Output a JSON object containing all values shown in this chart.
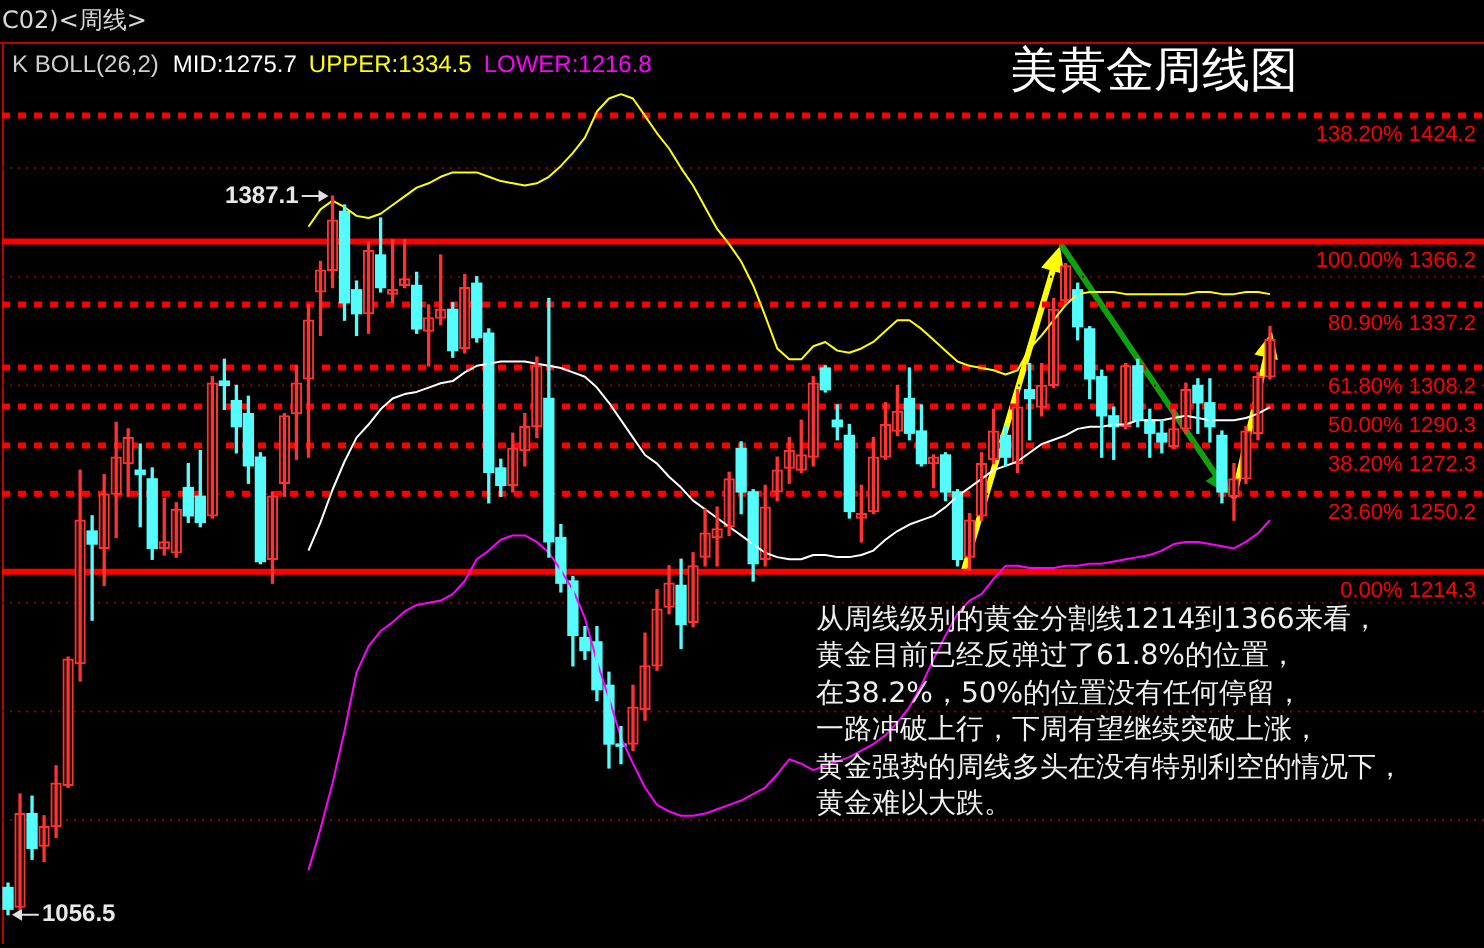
{
  "chart_data": {
    "type": "candlestick",
    "title": "美黄金周线图",
    "subtitle": "C02)<周线>",
    "legend_title": "K BOLL(26,2)",
    "categories": [
      null,
      null,
      null,
      null,
      null,
      null,
      null,
      null,
      null,
      null,
      null,
      null,
      null,
      null,
      null,
      null,
      null,
      null,
      null,
      null,
      null,
      null,
      null,
      null,
      null,
      null,
      null,
      null,
      null,
      null,
      null,
      null,
      null,
      null,
      null,
      null,
      null,
      null,
      null,
      null,
      null,
      null,
      null,
      null,
      null,
      null,
      null,
      null,
      null,
      null,
      null,
      null,
      null,
      null,
      null,
      null,
      null,
      null,
      null,
      null,
      null,
      null,
      null,
      null,
      null,
      null,
      null,
      null,
      null,
      null,
      null,
      null,
      null,
      null,
      null,
      null,
      null,
      null,
      null,
      null,
      null,
      null,
      null,
      null,
      null,
      null,
      null,
      null,
      null,
      null,
      null,
      null,
      null,
      null,
      null,
      null,
      null,
      null,
      null,
      null,
      null,
      null,
      null,
      null,
      null,
      null
    ],
    "ohlc": [
      [
        1069,
        1071,
        1056.5,
        1059
      ],
      [
        1060,
        1112,
        1059,
        1103
      ],
      [
        1103,
        1111,
        1082,
        1087
      ],
      [
        1088,
        1102,
        1081,
        1097
      ],
      [
        1097,
        1125,
        1092,
        1117
      ],
      [
        1116,
        1175,
        1115,
        1174
      ],
      [
        1172,
        1261,
        1164,
        1238
      ],
      [
        1233,
        1240,
        1192,
        1227
      ],
      [
        1225,
        1259,
        1208,
        1250
      ],
      [
        1250,
        1283,
        1230,
        1267
      ],
      [
        1264,
        1280,
        1249,
        1276
      ],
      [
        1261,
        1273,
        1235,
        1259
      ],
      [
        1257,
        1262,
        1220,
        1225
      ],
      [
        1225,
        1248,
        1222,
        1228
      ],
      [
        1223,
        1246,
        1221,
        1243
      ],
      [
        1253,
        1264,
        1237,
        1240
      ],
      [
        1249,
        1270,
        1235,
        1237
      ],
      [
        1240,
        1304,
        1239,
        1301
      ],
      [
        1302,
        1312,
        1289,
        1300
      ],
      [
        1293,
        1300,
        1269,
        1281
      ],
      [
        1287,
        1295,
        1255,
        1263
      ],
      [
        1267,
        1269,
        1218,
        1219
      ],
      [
        1220,
        1251,
        1209,
        1249
      ],
      [
        1255,
        1287,
        1249,
        1286
      ],
      [
        1287,
        1309,
        1266,
        1301
      ],
      [
        1303,
        1337,
        1267,
        1330
      ],
      [
        1343,
        1357,
        1323,
        1353
      ],
      [
        1353,
        1387.1,
        1345,
        1376
      ],
      [
        1380,
        1383,
        1330,
        1338
      ],
      [
        1344,
        1348,
        1323,
        1333
      ],
      [
        1333,
        1366,
        1324,
        1362
      ],
      [
        1360,
        1377,
        1343,
        1345
      ],
      [
        1342,
        1367,
        1338,
        1344
      ],
      [
        1346,
        1367,
        1345,
        1349
      ],
      [
        1346,
        1352,
        1324,
        1326
      ],
      [
        1325,
        1337,
        1309,
        1331
      ],
      [
        1331,
        1360,
        1328,
        1335
      ],
      [
        1335,
        1338,
        1313,
        1316
      ],
      [
        1317,
        1351,
        1315,
        1345
      ],
      [
        1347,
        1350,
        1320,
        1322
      ],
      [
        1324,
        1326,
        1246,
        1260
      ],
      [
        1262,
        1266,
        1249,
        1254
      ],
      [
        1254,
        1278,
        1251,
        1271
      ],
      [
        1270,
        1287,
        1263,
        1281
      ],
      [
        1281,
        1313,
        1276,
        1309
      ],
      [
        1294,
        1340,
        1221,
        1228
      ],
      [
        1230,
        1236,
        1205,
        1209
      ],
      [
        1210,
        1212,
        1171,
        1185
      ],
      [
        1184,
        1189,
        1174,
        1178
      ],
      [
        1182,
        1189,
        1155,
        1160
      ],
      [
        1162,
        1168,
        1124,
        1135
      ],
      [
        1135,
        1143,
        1126,
        1134
      ],
      [
        1135,
        1162,
        1132,
        1152
      ],
      [
        1151,
        1186,
        1146,
        1171
      ],
      [
        1171,
        1206,
        1169,
        1197
      ],
      [
        1198,
        1217,
        1195,
        1209
      ],
      [
        1208,
        1220,
        1179,
        1190
      ],
      [
        1191,
        1223,
        1189,
        1217
      ],
      [
        1221,
        1243,
        1217,
        1232
      ],
      [
        1230,
        1244,
        1217,
        1234
      ],
      [
        1235,
        1260,
        1231,
        1257
      ],
      [
        1271,
        1274,
        1241,
        1251
      ],
      [
        1251,
        1252,
        1210,
        1218
      ],
      [
        1220,
        1254,
        1217,
        1244
      ],
      [
        1251,
        1267,
        1247,
        1261
      ],
      [
        1262,
        1276,
        1255,
        1270
      ],
      [
        1261,
        1284,
        1260,
        1268
      ],
      [
        1267,
        1304,
        1263,
        1301
      ],
      [
        1308,
        1309,
        1297,
        1298
      ],
      [
        1284,
        1291,
        1275,
        1281
      ],
      [
        1277,
        1282,
        1239,
        1242
      ],
      [
        1239,
        1254,
        1228,
        1241
      ],
      [
        1242,
        1276,
        1241,
        1267
      ],
      [
        1267,
        1292,
        1266,
        1282
      ],
      [
        1279,
        1300,
        1277,
        1288
      ],
      [
        1294,
        1308,
        1275,
        1278
      ],
      [
        1279,
        1291,
        1263,
        1264
      ],
      [
        1264,
        1268,
        1253,
        1267
      ],
      [
        1268,
        1269,
        1247,
        1251
      ],
      [
        1251,
        1252,
        1217,
        1220
      ],
      [
        1221,
        1241,
        1215,
        1238
      ],
      [
        1240,
        1269,
        1238,
        1264
      ],
      [
        1266,
        1289,
        1264,
        1279
      ],
      [
        1277,
        1281,
        1263,
        1267
      ],
      [
        1264,
        1298,
        1260,
        1290
      ],
      [
        1298,
        1310,
        1275,
        1294
      ],
      [
        1290,
        1310,
        1286,
        1300
      ],
      [
        1300,
        1340,
        1299,
        1335
      ],
      [
        1339,
        1356,
        1338,
        1355
      ],
      [
        1344,
        1347,
        1321,
        1327
      ],
      [
        1326,
        1327,
        1294,
        1303
      ],
      [
        1304,
        1307,
        1267,
        1286
      ],
      [
        1286,
        1290,
        1266,
        1281
      ],
      [
        1281,
        1310,
        1280,
        1309
      ],
      [
        1309,
        1312,
        1281,
        1284
      ],
      [
        1284,
        1289,
        1267,
        1278
      ],
      [
        1278,
        1284,
        1269,
        1274
      ],
      [
        1272,
        1289,
        1271,
        1280
      ],
      [
        1280,
        1301,
        1278,
        1298
      ],
      [
        1300,
        1303,
        1278,
        1292
      ],
      [
        1292,
        1303,
        1274,
        1281
      ],
      [
        1277,
        1279,
        1246,
        1251
      ],
      [
        1249,
        1264,
        1238,
        1257
      ],
      [
        1257,
        1281,
        1255,
        1279
      ],
      [
        1278,
        1306,
        1275,
        1304
      ],
      [
        1304,
        1327,
        1303,
        1321
      ]
    ],
    "colors": [
      "#54fcfc",
      "#ff3232",
      "#54fcfc",
      "#ff3232",
      "#ff3232",
      "#ff3232",
      "#ff3232",
      "#54fcfc",
      "#ff3232",
      "#ff3232",
      "#ff3232",
      "#54fcfc",
      "#54fcfc",
      "#ff3232",
      "#ff3232",
      "#54fcfc",
      "#54fcfc",
      "#ff3232",
      "#54fcfc",
      "#54fcfc",
      "#54fcfc",
      "#54fcfc",
      "#ff3232",
      "#ff3232",
      "#ff3232",
      "#ff3232",
      "#ff3232",
      "#ff3232",
      "#54fcfc",
      "#54fcfc",
      "#ff3232",
      "#54fcfc",
      "#ff3232",
      "#ff3232",
      "#54fcfc",
      "#ff3232",
      "#ff3232",
      "#54fcfc",
      "#ff3232",
      "#54fcfc",
      "#54fcfc",
      "#54fcfc",
      "#ff3232",
      "#ff3232",
      "#ff3232",
      "#54fcfc",
      "#54fcfc",
      "#54fcfc",
      "#54fcfc",
      "#54fcfc",
      "#54fcfc",
      "#54fcfc",
      "#ff3232",
      "#ff3232",
      "#ff3232",
      "#ff3232",
      "#54fcfc",
      "#ff3232",
      "#ff3232",
      "#ff3232",
      "#ff3232",
      "#54fcfc",
      "#54fcfc",
      "#ff3232",
      "#ff3232",
      "#ff3232",
      "#ff3232",
      "#ff3232",
      "#54fcfc",
      "#54fcfc",
      "#54fcfc",
      "#ff3232",
      "#ff3232",
      "#ff3232",
      "#ff3232",
      "#54fcfc",
      "#54fcfc",
      "#ff3232",
      "#54fcfc",
      "#54fcfc",
      "#ff3232",
      "#ff3232",
      "#ff3232",
      "#54fcfc",
      "#ff3232",
      "#54fcfc",
      "#ff3232",
      "#ff3232",
      "#ff3232",
      "#54fcfc",
      "#54fcfc",
      "#54fcfc",
      "#54fcfc",
      "#ff3232",
      "#54fcfc",
      "#54fcfc",
      "#54fcfc",
      "#ff3232",
      "#ff3232",
      "#54fcfc",
      "#54fcfc",
      "#54fcfc",
      "#ff3232",
      "#ff3232",
      "#ff3232",
      "#ff3232"
    ],
    "series": [
      {
        "name": "MID:1275.7",
        "type": "line",
        "color": "#ffffff",
        "values": [
          null,
          null,
          null,
          null,
          null,
          null,
          null,
          null,
          null,
          null,
          null,
          null,
          null,
          null,
          null,
          null,
          null,
          null,
          null,
          null,
          null,
          null,
          null,
          null,
          null,
          1224,
          1237,
          1252,
          1265,
          1276,
          1282,
          1289,
          1294,
          1296,
          1297,
          1299,
          1301,
          1302,
          1306,
          1309,
          1310,
          1311,
          1311,
          1311,
          1310,
          1309,
          1308,
          1306,
          1304,
          1299,
          1292,
          1284,
          1276,
          1268,
          1264,
          1258,
          1253,
          1247,
          1243,
          1239,
          1235,
          1231,
          1227,
          1223,
          1221,
          1220,
          1220,
          1222,
          1222,
          1221,
          1221,
          1222,
          1224,
          1229,
          1233,
          1236,
          1238,
          1240,
          1244,
          1249,
          1253,
          1257,
          1261,
          1263,
          1265,
          1269,
          1273,
          1275,
          1277,
          1280,
          1281,
          1281,
          1282,
          1282,
          1284,
          1284,
          1284,
          1285,
          1286,
          1285,
          1284,
          1284,
          1284,
          1285,
          1287,
          1290
        ]
      },
      {
        "name": "UPPER:1334.5",
        "type": "line",
        "color": "#ffff00",
        "values": [
          null,
          null,
          null,
          null,
          null,
          null,
          null,
          null,
          null,
          null,
          null,
          null,
          null,
          null,
          null,
          null,
          null,
          null,
          null,
          null,
          null,
          null,
          null,
          null,
          null,
          1373,
          1381,
          1385,
          1382,
          1378,
          1377,
          1379,
          1383,
          1387,
          1391,
          1393,
          1396,
          1398,
          1398,
          1398,
          1396,
          1394,
          1393,
          1392,
          1393,
          1396,
          1401,
          1407,
          1414,
          1426,
          1432,
          1434,
          1432,
          1424,
          1416,
          1409,
          1400,
          1392,
          1382,
          1372,
          1365,
          1357,
          1346,
          1332,
          1317,
          1312,
          1312,
          1318,
          1320,
          1316,
          1315,
          1317,
          1320,
          1325,
          1330,
          1330,
          1326,
          1321,
          1316,
          1311,
          1309,
          1308,
          1307,
          1305,
          1307,
          1317,
          1323,
          1330,
          1337,
          1342,
          1343,
          1343,
          1343,
          1342,
          1342,
          1342,
          1342,
          1342,
          1342,
          1343,
          1343,
          1342,
          1342,
          1343,
          1343,
          1342
        ]
      },
      {
        "name": "LOWER:1216.8",
        "type": "line",
        "color": "#ff00ff",
        "values": [
          null,
          null,
          null,
          null,
          null,
          null,
          null,
          null,
          null,
          null,
          null,
          null,
          null,
          null,
          null,
          null,
          null,
          null,
          null,
          null,
          null,
          null,
          null,
          null,
          null,
          1077,
          1096,
          1117,
          1141,
          1168,
          1180,
          1187,
          1191,
          1196,
          1199,
          1200,
          1201,
          1204,
          1210,
          1220,
          1224,
          1229,
          1231,
          1231,
          1228,
          1223,
          1215,
          1206,
          1193,
          1173,
          1156,
          1138,
          1126,
          1115,
          1107,
          1104,
          1102,
          1102,
          1103,
          1105,
          1107,
          1109,
          1112,
          1115,
          1121,
          1128,
          1126,
          1123,
          1125,
          1127,
          1129,
          1132,
          1135,
          1139,
          1145,
          1152,
          1162,
          1174,
          1185,
          1195,
          1201,
          1204,
          1211,
          1217,
          1217,
          1216,
          1216,
          1216,
          1217,
          1217,
          1218,
          1218,
          1219,
          1220,
          1221,
          1222,
          1224,
          1227,
          1228,
          1228,
          1227,
          1226,
          1225,
          1228,
          1232,
          1238
        ]
      }
    ],
    "ylim": [
      1043,
      1458
    ],
    "yticks": [
      {
        "value": 1100,
        "label": null
      },
      {
        "value": 1150,
        "label": null
      },
      {
        "value": 1200,
        "label": null
      },
      {
        "value": 1250,
        "label": null
      },
      {
        "value": 1300,
        "label": null
      },
      {
        "value": 1350,
        "label": null
      },
      {
        "value": 1400,
        "label": null
      }
    ],
    "grid": "y",
    "tick_labels": false,
    "ref_lines": [
      {
        "axis": "y",
        "value": 1424.2,
        "label": "138.20% 1424.2",
        "color": "#ff0000",
        "line_style": "dotted"
      },
      {
        "axis": "y",
        "value": 1366.2,
        "label": "100.00% 1366.2",
        "color": "#ff0000",
        "line_style": "solid"
      },
      {
        "axis": "y",
        "value": 1337.2,
        "label": "80.90% 1337.2",
        "color": "#ff0000",
        "line_style": "dotted"
      },
      {
        "axis": "y",
        "value": 1308.2,
        "label": "61.80% 1308.2",
        "color": "#ff0000",
        "line_style": "dotted"
      },
      {
        "axis": "y",
        "value": 1290.3,
        "label": "50.00% 1290.3",
        "color": "#ff0000",
        "line_style": "dotted"
      },
      {
        "axis": "y",
        "value": 1272.3,
        "label": "38.20% 1272.3",
        "color": "#ff0000",
        "line_style": "dotted"
      },
      {
        "axis": "y",
        "value": 1250.2,
        "label": "23.60% 1250.2",
        "color": "#ff0000",
        "line_style": "dotted"
      },
      {
        "axis": "y",
        "value": 1214.3,
        "label": "0.00% 1214.3",
        "color": "#ff0000",
        "line_style": "solid"
      }
    ],
    "annotations": [
      "1387.1",
      "1056.5",
      "从周线级别的黄金分割线1214到1366来看，",
      "黄金目前已经反弹过了61.8%的位置，",
      "在38.2%，50%的位置没有任何停留，",
      "一路冲破上行，下周有望继续突破上涨，",
      "黄金强势的周线多头在没有特别利空的情况下，",
      "黄金难以大跌。"
    ]
  }
}
